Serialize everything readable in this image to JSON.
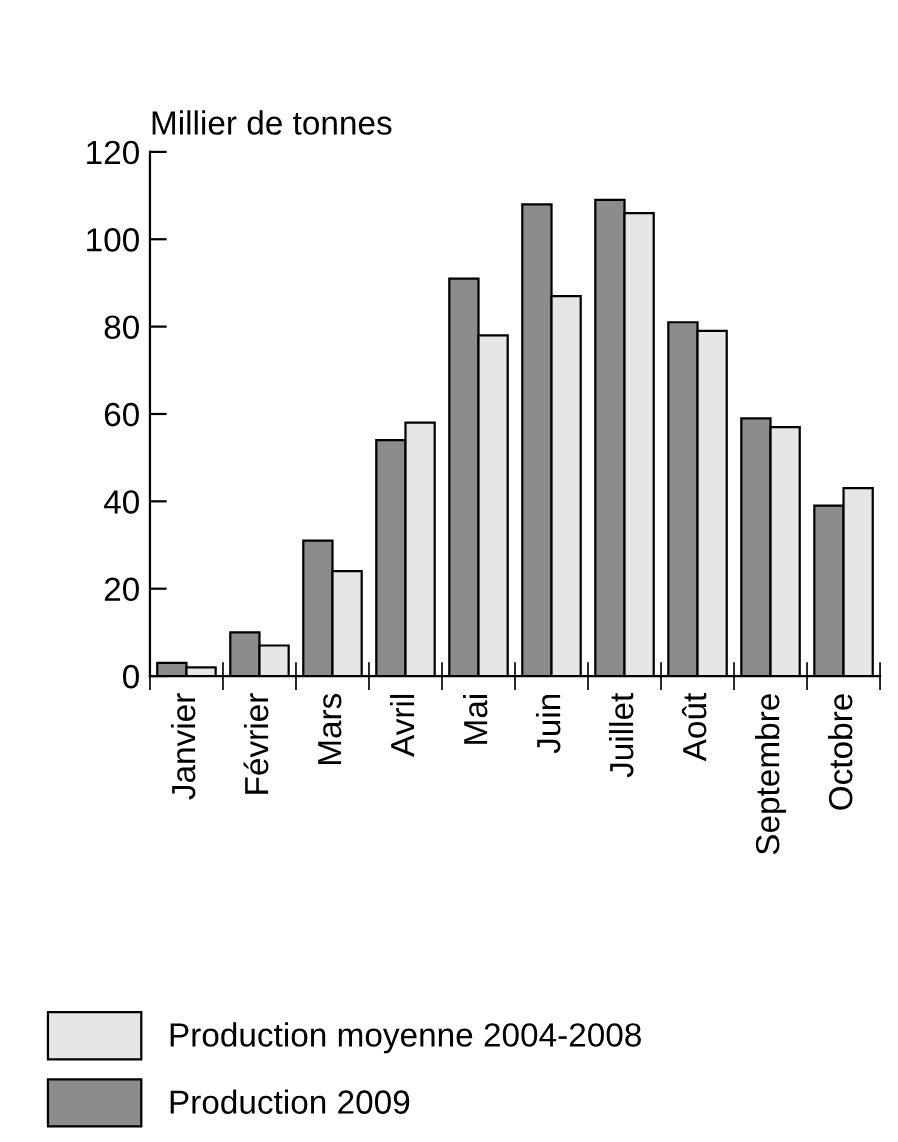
{
  "chart_data": {
    "type": "bar",
    "ylabel": "Millier de tonnes",
    "categories": [
      "Janvier",
      "Février",
      "Mars",
      "Avril",
      "Mai",
      "Juin",
      "Juillet",
      "Août",
      "Septembre",
      "Octobre"
    ],
    "series": [
      {
        "name": "Production 2009",
        "color": "#8c8c8c",
        "values": [
          3,
          10,
          31,
          54,
          91,
          108,
          109,
          81,
          59,
          39
        ]
      },
      {
        "name": "Production moyenne 2004-2008",
        "color": "#e6e6e6",
        "values": [
          2,
          7,
          24,
          58,
          78,
          87,
          106,
          79,
          57,
          43
        ]
      }
    ],
    "ylim": [
      0,
      120
    ],
    "yticks": [
      0,
      20,
      40,
      60,
      80,
      100,
      120
    ],
    "grid": false,
    "legend": "bottom"
  }
}
